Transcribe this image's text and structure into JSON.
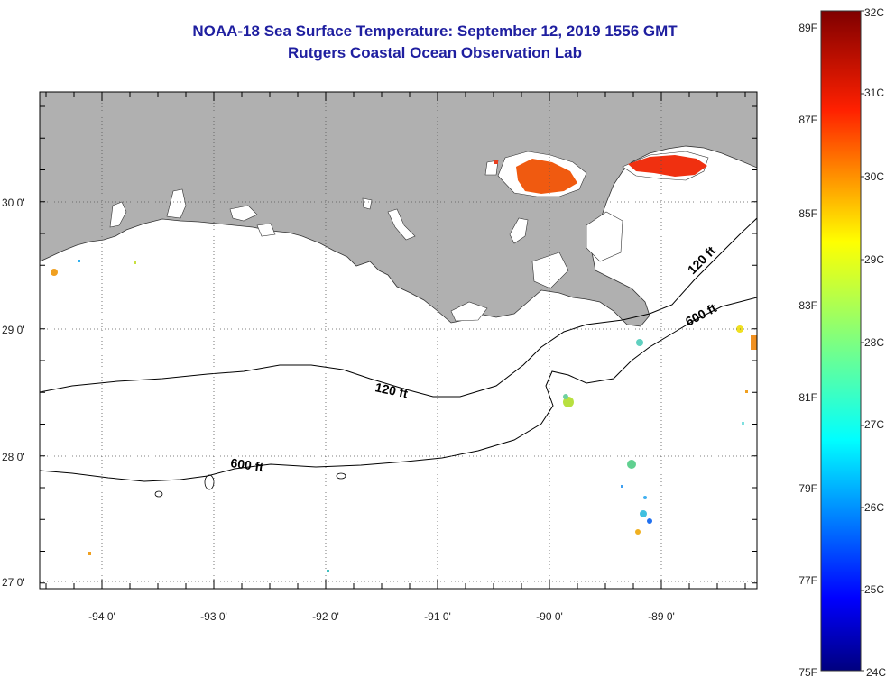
{
  "header": {
    "title": "NOAA-18 Sea Surface Temperature:  September 12, 2019 1556 GMT",
    "subtitle": "Rutgers Coastal Ocean Observation Lab"
  },
  "map": {
    "lon_labels": [
      "-94 0'",
      "-93 0'",
      "-92 0'",
      "-91 0'",
      "-90 0'",
      "-89 0'"
    ],
    "lat_labels": [
      "30 0'",
      "29 0'",
      "28 0'",
      "27 0'"
    ],
    "contour_labels": [
      "120 ft",
      "600 ft",
      "120 ft",
      "600 ft"
    ],
    "colors": {
      "land": "#b0b0b0",
      "ocean": "#ffffff",
      "contour": "#000000",
      "grid": "#555555"
    }
  },
  "colorbar": {
    "celsius_labels": [
      "32C",
      "31C",
      "30C",
      "29C",
      "28C",
      "27C",
      "26C",
      "25C",
      "24C"
    ],
    "fahrenheit_labels": [
      "89F",
      "87F",
      "85F",
      "83F",
      "81F",
      "79F",
      "77F",
      "75F"
    ],
    "range_c": [
      24,
      32
    ],
    "colormap": "jet"
  }
}
